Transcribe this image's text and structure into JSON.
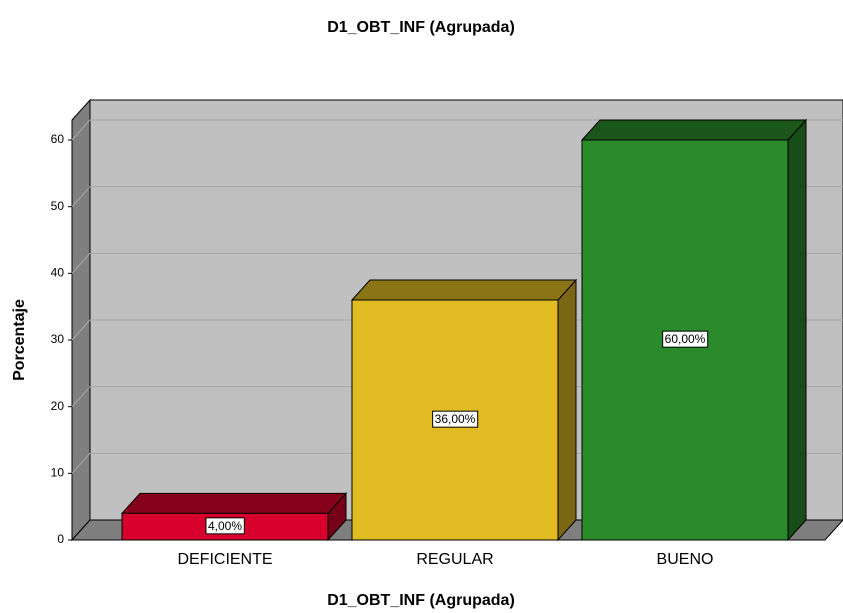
{
  "chart_data": {
    "type": "bar3d",
    "title": "D1_OBT_INF (Agrupada)",
    "x_label": "D1_OBT_INF (Agrupada)",
    "y_label": "Porcentaje",
    "categories": [
      "DEFICIENTE",
      "REGULAR",
      "BUENO"
    ],
    "values": [
      4,
      36,
      60
    ],
    "value_labels": [
      "4,00%",
      "36,00%",
      "60,00%"
    ],
    "colors": [
      "#d7002c",
      "#e0bb22",
      "#2b8a2b"
    ],
    "ylim": [
      0,
      63
    ],
    "yticks": [
      0,
      10,
      20,
      30,
      40,
      50,
      60
    ],
    "grid": true
  }
}
